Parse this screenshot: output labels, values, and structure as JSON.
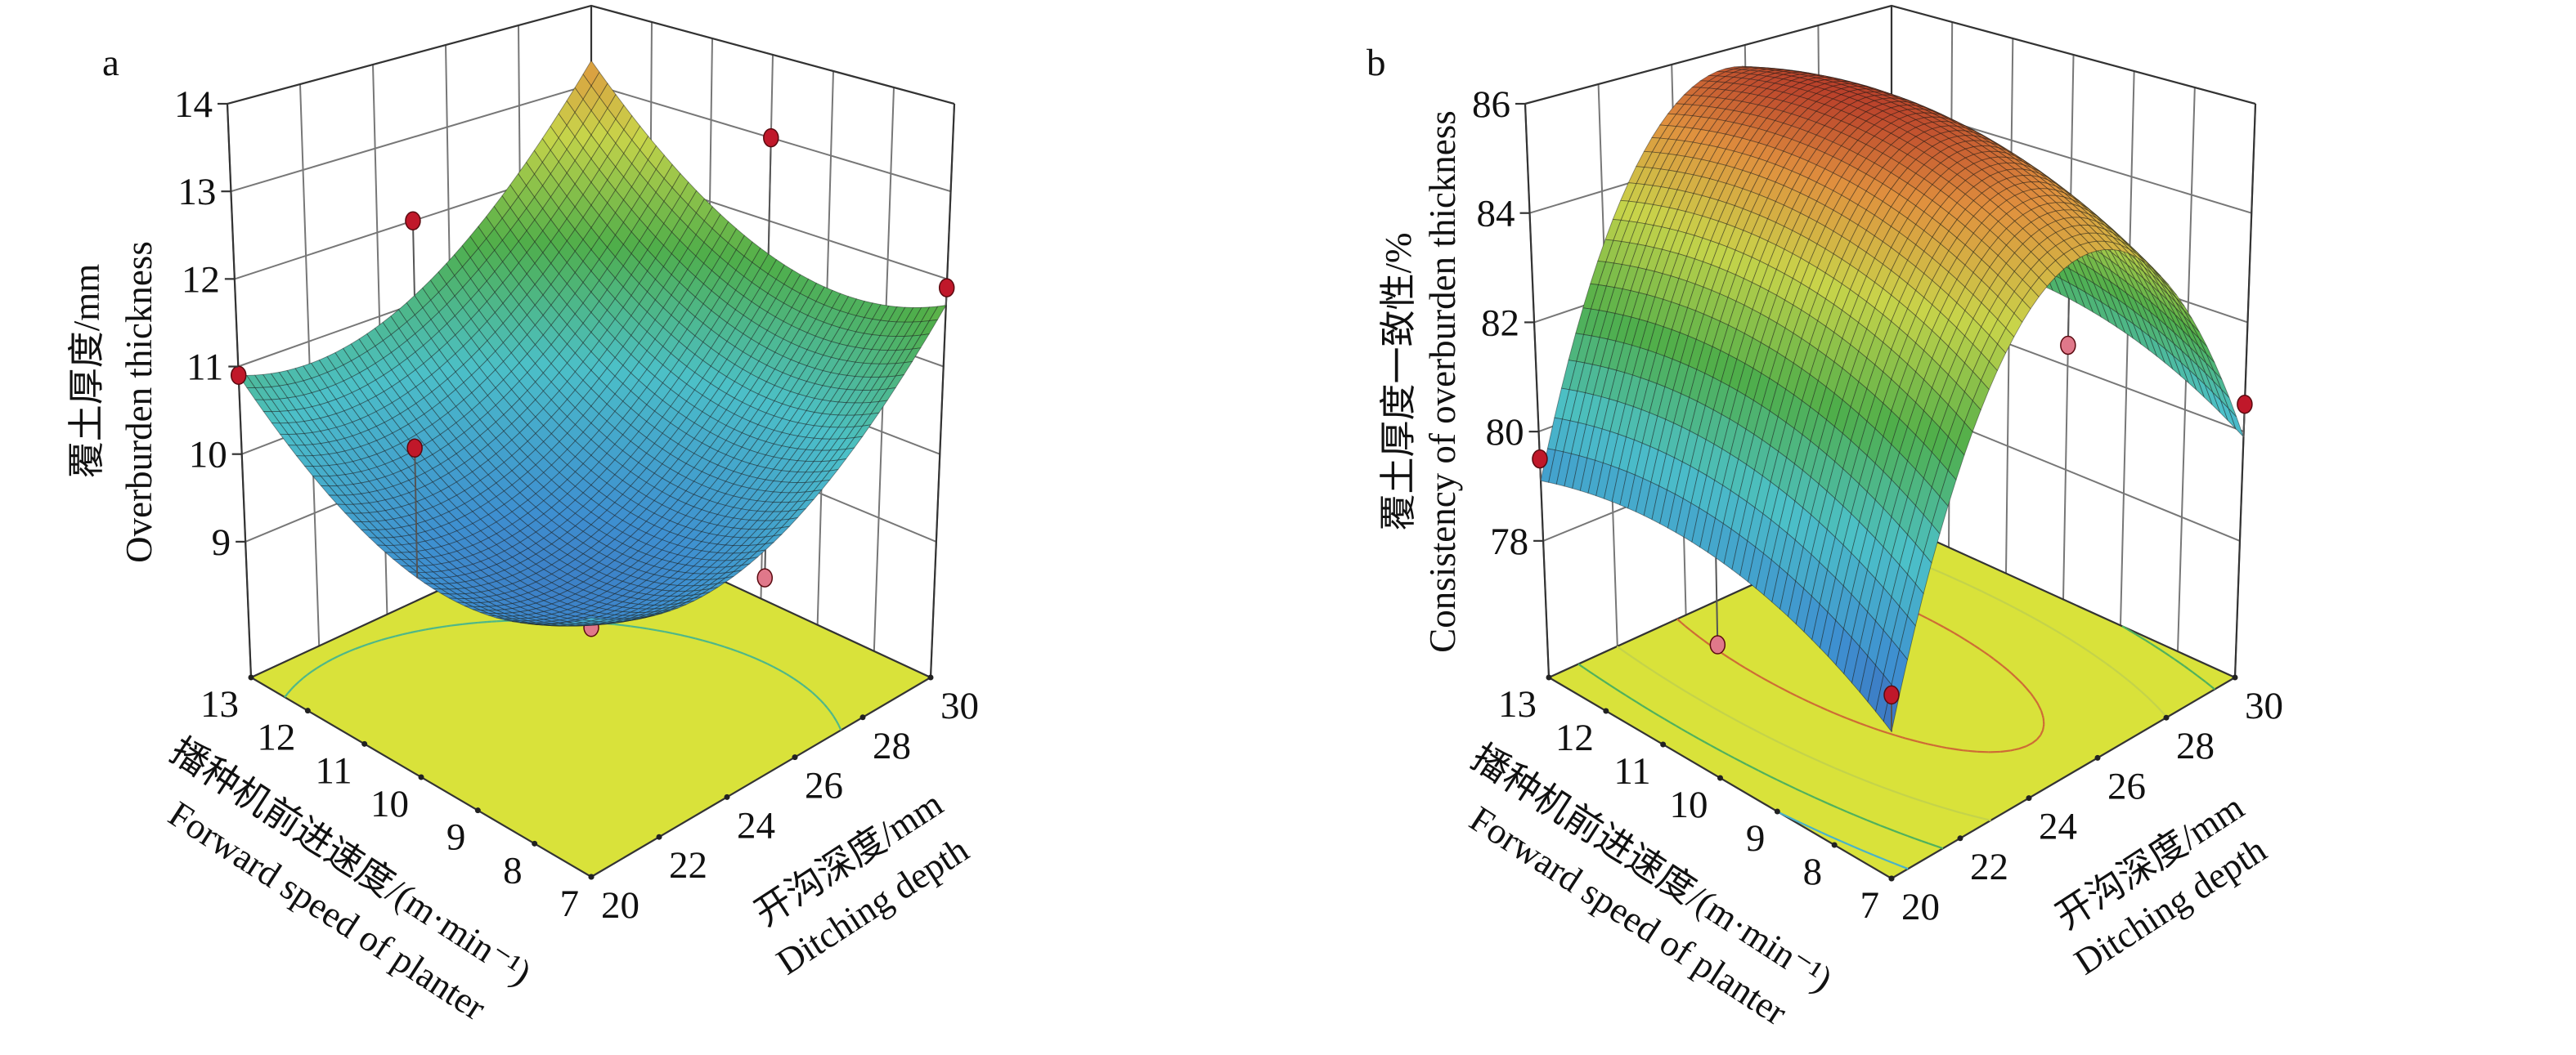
{
  "chart_data": [
    {
      "type": "surface3d",
      "panel_label": "a",
      "zlabel": [
        "覆土厚度/mm",
        "Overburden thickness"
      ],
      "xlabel": [
        "开沟深度/mm",
        "Ditching depth"
      ],
      "ylabel": [
        "播种机前进速度/(m·min⁻¹)",
        "Forward speed of planter"
      ],
      "x_ticks": [
        20,
        22,
        24,
        26,
        28,
        30
      ],
      "y_ticks": [
        7,
        8,
        9,
        10,
        11,
        12,
        13
      ],
      "z_ticks": [
        9,
        10,
        11,
        12,
        13,
        14
      ],
      "xlim": [
        20,
        30
      ],
      "ylim": [
        7,
        13
      ],
      "zlim": [
        7.45,
        14
      ],
      "surface_model_coded": {
        "b0": 9.6,
        "b1": 1.0,
        "b2": 0.6,
        "b12": 0.2,
        "b11": 1.0,
        "b22": 0.9
      },
      "points": [
        {
          "x": 20,
          "y": 13,
          "z": 10.9
        },
        {
          "x": 20,
          "y": 10,
          "z": 11.0
        },
        {
          "x": 20,
          "y": 7,
          "z": 10.0
        },
        {
          "x": 25,
          "y": 13,
          "z": 12.0
        },
        {
          "x": 30,
          "y": 10,
          "z": 13.0
        },
        {
          "x": 30,
          "y": 7,
          "z": 11.9
        },
        {
          "x": 25,
          "y": 7,
          "z": 9.6
        }
      ],
      "contour_levels": [
        10.5,
        12.5
      ],
      "floor_color": "#d9e23a",
      "top_color": "#d8406e"
    },
    {
      "type": "surface3d",
      "panel_label": "b",
      "zlabel": [
        "覆土厚度一致性/%",
        "Consistency of overburden thickness"
      ],
      "xlabel": [
        "开沟深度/mm",
        "Ditching depth"
      ],
      "ylabel": [
        "播种机前进速度/(m·min⁻¹)",
        "Forward speed of planter"
      ],
      "x_ticks": [
        20,
        22,
        24,
        26,
        28,
        30
      ],
      "y_ticks": [
        7,
        8,
        9,
        10,
        11,
        12,
        13
      ],
      "z_ticks": [
        78,
        80,
        82,
        84,
        86
      ],
      "xlim": [
        20,
        30
      ],
      "ylim": [
        7,
        13
      ],
      "zlim": [
        75.5,
        86
      ],
      "surface_model_coded": {
        "b0": 85.8,
        "b1": 1.0,
        "b2": 0.6,
        "b12": 0.0,
        "b11": -5.5,
        "b22": -0.8
      },
      "points": [
        {
          "x": 20,
          "y": 13,
          "z": 79.5
        },
        {
          "x": 20,
          "y": 10,
          "z": 77.8
        },
        {
          "x": 20,
          "y": 7,
          "z": 78.5
        },
        {
          "x": 25,
          "y": 10,
          "z": 85.2
        },
        {
          "x": 30,
          "y": 10,
          "z": 80.4
        },
        {
          "x": 30,
          "y": 7,
          "z": 80.5
        }
      ],
      "contour_levels": [
        79,
        81,
        83,
        85
      ],
      "floor_color": "#d9e23a",
      "top_color": "#a81c22"
    }
  ]
}
